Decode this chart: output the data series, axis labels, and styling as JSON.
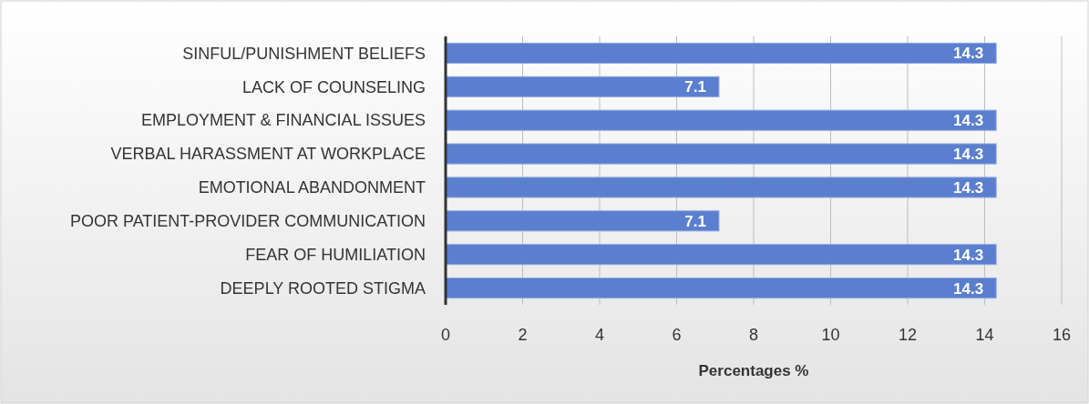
{
  "chart_data": {
    "type": "bar",
    "orientation": "horizontal",
    "categories": [
      "SINFUL/PUNISHMENT BELIEFS",
      "LACK OF COUNSELING",
      "EMPLOYMENT & FINANCIAL ISSUES",
      "VERBAL HARASSMENT AT WORKPLACE",
      "EMOTIONAL ABANDONMENT",
      "POOR PATIENT-PROVIDER COMMUNICATION",
      "FEAR OF HUMILIATION",
      "DEEPLY ROOTED STIGMA"
    ],
    "values": [
      14.3,
      7.1,
      14.3,
      14.3,
      14.3,
      7.1,
      14.3,
      14.3
    ],
    "color": "#5b7fcf",
    "xlim": [
      0,
      16
    ],
    "xticks": [
      0,
      2,
      4,
      6,
      8,
      10,
      12,
      14,
      16
    ],
    "xlabel": "Percentages %",
    "grid": "x",
    "data_labels": true
  }
}
